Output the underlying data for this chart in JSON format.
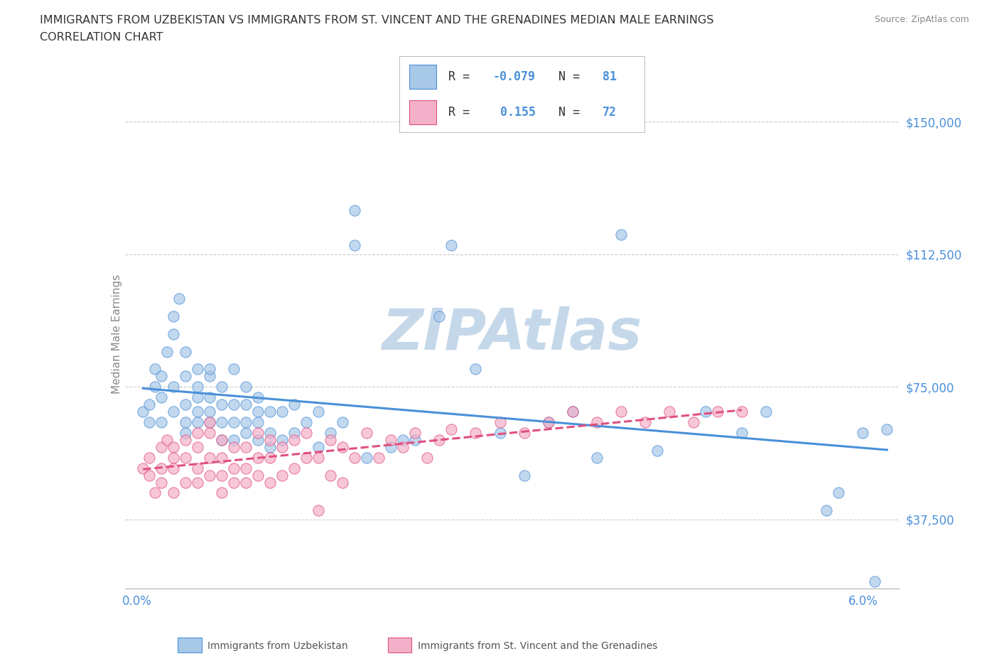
{
  "title_line1": "IMMIGRANTS FROM UZBEKISTAN VS IMMIGRANTS FROM ST. VINCENT AND THE GRENADINES MEDIAN MALE EARNINGS",
  "title_line2": "CORRELATION CHART",
  "source_text": "Source: ZipAtlas.com",
  "ylabel": "Median Male Earnings",
  "xlim": [
    -0.001,
    0.063
  ],
  "ylim": [
    18000,
    162000
  ],
  "xticks": [
    0.0,
    0.01,
    0.02,
    0.03,
    0.04,
    0.05,
    0.06
  ],
  "xticklabels_show": [
    "0.0%",
    "",
    "",
    "",
    "",
    "",
    "6.0%"
  ],
  "yticks": [
    37500,
    75000,
    112500,
    150000
  ],
  "yticklabels": [
    "$37,500",
    "$75,000",
    "$112,500",
    "$150,000"
  ],
  "R_uzbek": -0.079,
  "N_uzbek": 81,
  "R_stvincent": 0.155,
  "N_stvincent": 72,
  "uzbek_fill": "#a8c8e8",
  "uzbek_edge": "#4a90d9",
  "stvincent_fill": "#f4b0c8",
  "stvincent_edge": "#e05080",
  "watermark": "ZIPAtlas",
  "watermark_color": "#c5d8ea",
  "legend_label_uzbek": "Immigrants from Uzbekistan",
  "legend_label_stvincent": "Immigrants from St. Vincent and the Grenadines",
  "uzbek_x": [
    0.0005,
    0.001,
    0.001,
    0.0015,
    0.0015,
    0.002,
    0.002,
    0.002,
    0.0025,
    0.003,
    0.003,
    0.003,
    0.003,
    0.0035,
    0.004,
    0.004,
    0.004,
    0.004,
    0.004,
    0.005,
    0.005,
    0.005,
    0.005,
    0.005,
    0.006,
    0.006,
    0.006,
    0.006,
    0.006,
    0.007,
    0.007,
    0.007,
    0.007,
    0.008,
    0.008,
    0.008,
    0.008,
    0.009,
    0.009,
    0.009,
    0.009,
    0.01,
    0.01,
    0.01,
    0.01,
    0.011,
    0.011,
    0.011,
    0.012,
    0.012,
    0.013,
    0.013,
    0.014,
    0.015,
    0.015,
    0.016,
    0.017,
    0.018,
    0.018,
    0.019,
    0.021,
    0.022,
    0.023,
    0.025,
    0.026,
    0.028,
    0.03,
    0.032,
    0.034,
    0.036,
    0.038,
    0.04,
    0.043,
    0.047,
    0.05,
    0.052,
    0.057,
    0.058,
    0.06,
    0.061,
    0.062
  ],
  "uzbek_y": [
    68000,
    70000,
    65000,
    75000,
    80000,
    72000,
    78000,
    65000,
    85000,
    90000,
    68000,
    75000,
    95000,
    100000,
    65000,
    70000,
    78000,
    85000,
    62000,
    65000,
    68000,
    72000,
    80000,
    75000,
    65000,
    68000,
    72000,
    78000,
    80000,
    60000,
    65000,
    70000,
    75000,
    60000,
    65000,
    70000,
    80000,
    62000,
    65000,
    70000,
    75000,
    60000,
    65000,
    68000,
    72000,
    58000,
    62000,
    68000,
    60000,
    68000,
    62000,
    70000,
    65000,
    58000,
    68000,
    62000,
    65000,
    115000,
    125000,
    55000,
    58000,
    60000,
    60000,
    95000,
    115000,
    80000,
    62000,
    50000,
    65000,
    68000,
    55000,
    118000,
    57000,
    68000,
    62000,
    68000,
    40000,
    45000,
    62000,
    20000,
    63000
  ],
  "sv_x": [
    0.0005,
    0.001,
    0.001,
    0.0015,
    0.002,
    0.002,
    0.002,
    0.0025,
    0.003,
    0.003,
    0.003,
    0.003,
    0.004,
    0.004,
    0.004,
    0.005,
    0.005,
    0.005,
    0.005,
    0.006,
    0.006,
    0.006,
    0.006,
    0.007,
    0.007,
    0.007,
    0.007,
    0.008,
    0.008,
    0.008,
    0.009,
    0.009,
    0.009,
    0.01,
    0.01,
    0.01,
    0.011,
    0.011,
    0.011,
    0.012,
    0.012,
    0.013,
    0.013,
    0.014,
    0.014,
    0.015,
    0.015,
    0.016,
    0.016,
    0.017,
    0.017,
    0.018,
    0.019,
    0.02,
    0.021,
    0.022,
    0.023,
    0.024,
    0.025,
    0.026,
    0.028,
    0.03,
    0.032,
    0.034,
    0.036,
    0.038,
    0.04,
    0.042,
    0.044,
    0.046,
    0.048,
    0.05
  ],
  "sv_y": [
    52000,
    50000,
    55000,
    45000,
    52000,
    58000,
    48000,
    60000,
    45000,
    52000,
    58000,
    55000,
    48000,
    55000,
    60000,
    48000,
    52000,
    58000,
    62000,
    50000,
    55000,
    62000,
    65000,
    45000,
    50000,
    55000,
    60000,
    48000,
    52000,
    58000,
    48000,
    52000,
    58000,
    50000,
    55000,
    62000,
    48000,
    55000,
    60000,
    50000,
    58000,
    52000,
    60000,
    55000,
    62000,
    40000,
    55000,
    50000,
    60000,
    48000,
    58000,
    55000,
    62000,
    55000,
    60000,
    58000,
    62000,
    55000,
    60000,
    63000,
    62000,
    65000,
    62000,
    65000,
    68000,
    65000,
    68000,
    65000,
    68000,
    65000,
    68000,
    68000
  ]
}
